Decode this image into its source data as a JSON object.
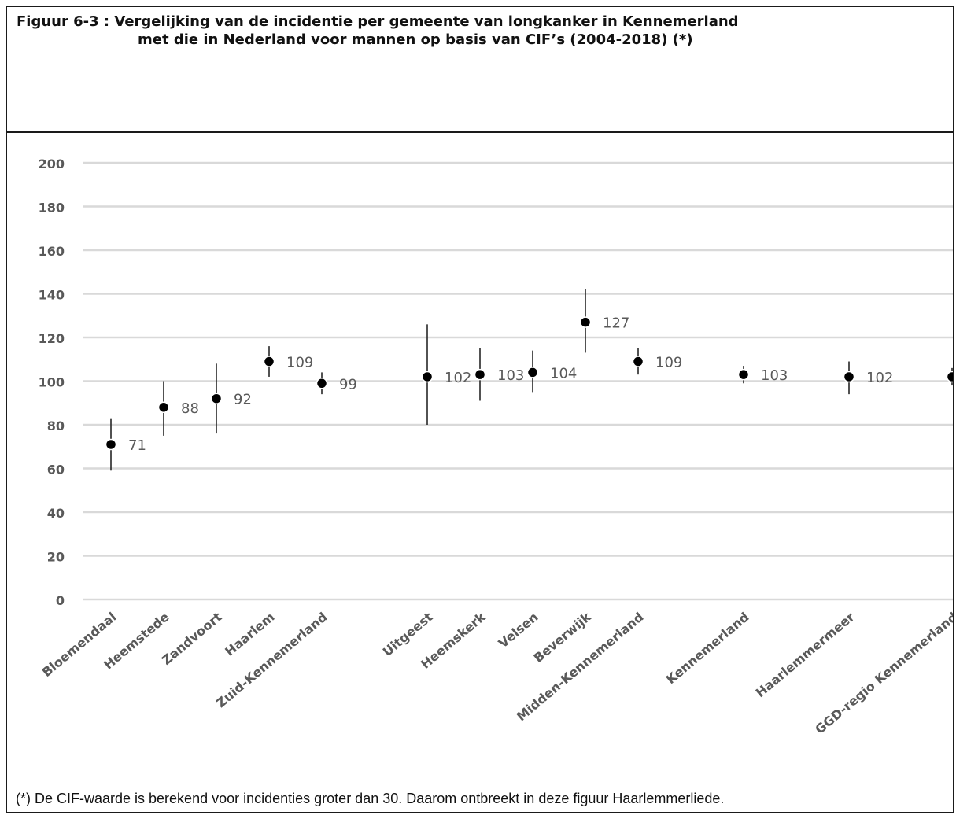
{
  "title": {
    "line1": "Figuur 6-3 : Vergelijking van de incidentie per gemeente van longkanker in Kennemerland",
    "line2": "met die in Nederland voor mannen op basis van CIF’s (2004-2018) (*)"
  },
  "footnote": "(*) De CIF-waarde is berekend voor incidenties groter dan 30. Daarom ontbreekt in deze figuur Haarlemmerliede.",
  "chart_data": {
    "type": "scatter",
    "error_bars": true,
    "grid": true,
    "ylim": [
      0,
      200
    ],
    "yticks": [
      "0",
      "20",
      "40",
      "60",
      "80",
      "100",
      "120",
      "140",
      "160",
      "180",
      "200"
    ],
    "categories": [
      "Bloemendaal",
      "Heemstede",
      "Zandvoort",
      "Haarlem",
      "Zuid-Kennemerland",
      "Uitgeest",
      "Heemskerk",
      "Velsen",
      "Beverwijk",
      "Midden-Kennemerland",
      "Kennemerland",
      "Haarlemmermeer",
      "GGD-regio Kennemerland"
    ],
    "values": [
      71,
      88,
      92,
      109,
      99,
      102,
      103,
      104,
      127,
      109,
      103,
      102,
      102
    ],
    "lower": [
      59,
      75,
      76,
      102,
      94,
      80,
      91,
      95,
      113,
      103,
      99,
      94,
      98
    ],
    "upper": [
      83,
      100,
      108,
      116,
      104,
      126,
      115,
      114,
      142,
      115,
      107,
      109,
      106
    ],
    "labels": [
      "71",
      "88",
      "92",
      "109",
      "99",
      "102",
      "103",
      "104",
      "127",
      "109",
      "103",
      "102",
      ""
    ],
    "colors": {
      "grid": "#d9d9d9",
      "marker": "#000000",
      "errorbar": "#262626",
      "text": "#595959"
    }
  }
}
